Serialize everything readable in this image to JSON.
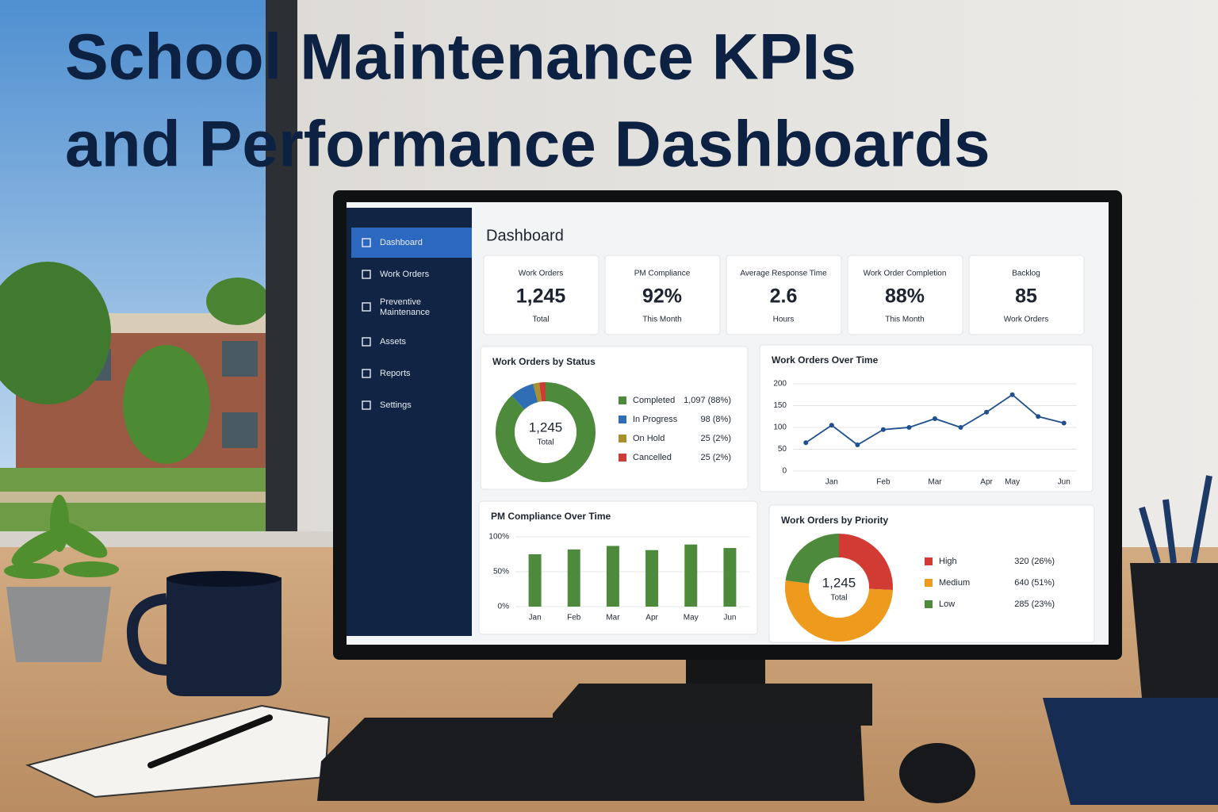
{
  "header": {
    "title_lines": [
      "School Maintenance KPIs",
      "and Performance Dashboards"
    ]
  },
  "sidebar": {
    "items": [
      "Dashboard",
      "Work Orders",
      "Preventive Maintenance",
      "Assets",
      "Reports",
      "Settings"
    ]
  },
  "dashboard_title": "Dashboard",
  "kpis": [
    {
      "label": "Work Orders",
      "value": "1,245",
      "sub": "Total"
    },
    {
      "label": "PM Compliance",
      "value": "92%",
      "sub": "This Month"
    },
    {
      "label": "Average Response Time",
      "value": "2.6",
      "sub": "Hours"
    },
    {
      "label": "Work Order Completion",
      "value": "88%",
      "sub": "This Month"
    },
    {
      "label": "Backlog",
      "value": "85",
      "sub": "Work Orders"
    }
  ],
  "status_chart": {
    "type": "donut",
    "title": "Work Orders by Status",
    "center_value": "1,245",
    "center_label": "Total",
    "series": [
      {
        "name": "Completed",
        "color": "#4e8a3c",
        "values": [
          1097
        ],
        "value_labels": [
          "1,097 (88%)"
        ]
      },
      {
        "name": "In Progress",
        "color": "#2f6db5",
        "values": [
          98
        ],
        "value_labels": [
          "98 (8%)"
        ]
      },
      {
        "name": "On Hold",
        "color": "#a8912c",
        "values": [
          25
        ],
        "value_labels": [
          "25 (2%)"
        ]
      },
      {
        "name": "Cancelled",
        "color": "#cc3b34",
        "values": [
          25
        ],
        "value_labels": [
          "25 (2%)"
        ]
      }
    ]
  },
  "line_chart": {
    "type": "line",
    "title": "Work Orders Over Time",
    "categories": [
      null,
      "Jan",
      null,
      "Feb",
      null,
      "Mar",
      null,
      "Apr",
      "May",
      null,
      "Jun"
    ],
    "values": [
      65,
      105,
      60,
      95,
      100,
      120,
      100,
      135,
      175,
      125,
      110
    ],
    "color": "#21508f",
    "ylim": [
      0,
      200
    ],
    "yticks": [
      0,
      50,
      100,
      150,
      200
    ],
    "grid": true
  },
  "pm_chart": {
    "type": "bar",
    "title": "PM Compliance Over Time",
    "categories": [
      "Jan",
      "Feb",
      "Mar",
      "Apr",
      "May",
      "Jun"
    ],
    "values": [
      75,
      82,
      87,
      81,
      89,
      84
    ],
    "color": "#4e8a3c",
    "ylim": [
      0,
      100
    ],
    "yticks": [
      {
        "value": 0,
        "label": "0%"
      },
      {
        "value": 50,
        "label": "50%"
      },
      {
        "value": 100,
        "label": "100%"
      }
    ],
    "grid": true
  },
  "priority_chart": {
    "type": "donut",
    "title": "Work Orders by Priority",
    "center_value": "1,245",
    "center_label": "Total",
    "series": [
      {
        "name": "High",
        "color": "#d23b33",
        "values": [
          320
        ],
        "value_labels": [
          "320 (26%)"
        ]
      },
      {
        "name": "Medium",
        "color": "#ee9a1c",
        "values": [
          640
        ],
        "value_labels": [
          "640 (51%)"
        ]
      },
      {
        "name": "Low",
        "color": "#4e8a3c",
        "values": [
          285
        ],
        "value_labels": [
          "285 (23%)"
        ]
      }
    ]
  }
}
